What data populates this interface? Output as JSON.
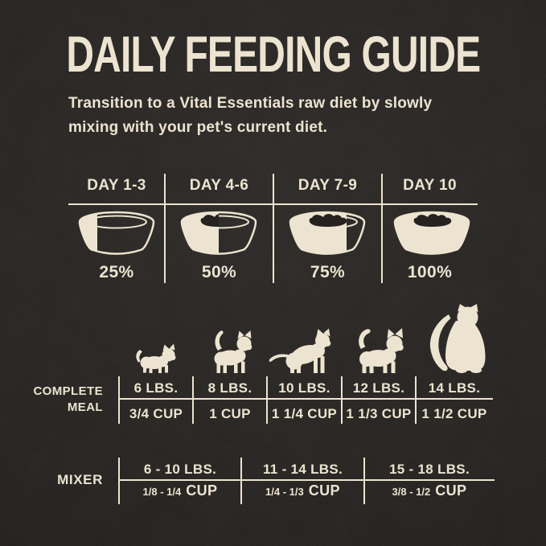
{
  "colors": {
    "background": "#252220",
    "cream": "#ece4d0"
  },
  "title": "DAILY FEEDING GUIDE",
  "subtitle": {
    "line1": "Transition to a Vital Essentials raw diet by slowly",
    "line2": "mixing with your pet's current diet."
  },
  "transition_table": {
    "columns": [
      {
        "day": "DAY 1-3",
        "bowl_icon": "bowl-25-percent-icon",
        "fill_percent": 25,
        "percent_label": "25%"
      },
      {
        "day": "DAY 4-6",
        "bowl_icon": "bowl-50-percent-icon",
        "fill_percent": 50,
        "percent_label": "50%"
      },
      {
        "day": "DAY 7-9",
        "bowl_icon": "bowl-75-percent-icon",
        "fill_percent": 75,
        "percent_label": "75%"
      },
      {
        "day": "DAY 10",
        "bowl_icon": "bowl-100-percent-icon",
        "fill_percent": 100,
        "percent_label": "100%"
      }
    ]
  },
  "cat_icons": [
    {
      "name": "kitten-walking-icon"
    },
    {
      "name": "young-cat-walking-icon"
    },
    {
      "name": "cat-crouching-icon"
    },
    {
      "name": "adult-cat-walking-icon"
    },
    {
      "name": "longhair-cat-sitting-icon"
    }
  ],
  "complete_meal_table": {
    "label_line1": "COMPLETE",
    "label_line2": "MEAL",
    "columns": [
      {
        "weight": "6 LBS.",
        "amount": "3/4 CUP"
      },
      {
        "weight": "8 LBS.",
        "amount": "1 CUP"
      },
      {
        "weight": "10 LBS.",
        "amount": "1 1/4 CUP"
      },
      {
        "weight": "12 LBS.",
        "amount": "1 1/3 CUP"
      },
      {
        "weight": "14 LBS.",
        "amount": "1 1/2 CUP"
      }
    ]
  },
  "mixer_table": {
    "label": "MIXER",
    "columns": [
      {
        "weight": "6 - 10 LBS.",
        "amount_range": "1/8 - 1/4",
        "amount_unit": "CUP"
      },
      {
        "weight": "11 - 14 LBS.",
        "amount_range": "1/4 - 1/3",
        "amount_unit": "CUP"
      },
      {
        "weight": "15 - 18 LBS.",
        "amount_range": "3/8 - 1/2",
        "amount_unit": "CUP"
      }
    ]
  }
}
